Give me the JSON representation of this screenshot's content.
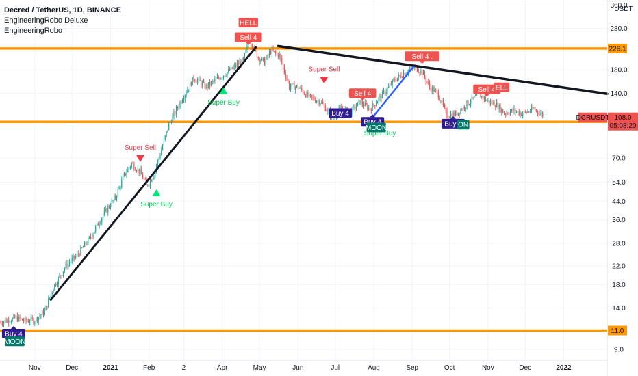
{
  "header": {
    "symbol_line": "Decred / TetherUS, 1D, BINANCE",
    "indicator_1": "EngineeringRobo Deluxe",
    "indicator_2": "EngineeringRobo"
  },
  "price_axis": {
    "currency": "USDT",
    "ticks": [
      {
        "value": 360,
        "label": "360.0"
      },
      {
        "value": 280,
        "label": "280.0"
      },
      {
        "value": 180,
        "label": "180.0"
      },
      {
        "value": 140,
        "label": "140.0"
      },
      {
        "value": 70,
        "label": "70.0"
      },
      {
        "value": 54,
        "label": "54.0"
      },
      {
        "value": 44,
        "label": "44.0"
      },
      {
        "value": 36,
        "label": "36.0"
      },
      {
        "value": 28,
        "label": "28.0"
      },
      {
        "value": 22,
        "label": "22.0"
      },
      {
        "value": 18,
        "label": "18.0"
      },
      {
        "value": 14,
        "label": "14.0"
      },
      {
        "value": 9,
        "label": "9.0"
      }
    ],
    "badges": [
      {
        "value": 226.1,
        "label": "226.1",
        "color": "#ff9800",
        "text_color": "#131722"
      },
      {
        "value": 103.0,
        "label": "103.0",
        "color": "#ff9800",
        "text_color": "#131722"
      },
      {
        "value": 11.0,
        "label": "11.0",
        "color": "#ff9800",
        "text_color": "#131722"
      }
    ],
    "current": {
      "value": 108.0,
      "price_label": "108.0",
      "countdown": "05:08:20",
      "ticker": "DCRUSDT",
      "color": "#ef5350"
    }
  },
  "time_axis": {
    "ticks": [
      {
        "day": 0,
        "label": "Nov",
        "bold": false
      },
      {
        "day": 30,
        "label": "Dec",
        "bold": false
      },
      {
        "day": 61,
        "label": "2021",
        "bold": true
      },
      {
        "day": 92,
        "label": "Feb",
        "bold": false
      },
      {
        "day": 120,
        "label": "2",
        "bold": false
      },
      {
        "day": 151,
        "label": "Apr",
        "bold": false
      },
      {
        "day": 181,
        "label": "May",
        "bold": false
      },
      {
        "day": 212,
        "label": "Jun",
        "bold": false
      },
      {
        "day": 242,
        "label": "Jul",
        "bold": false
      },
      {
        "day": 273,
        "label": "Aug",
        "bold": false
      },
      {
        "day": 304,
        "label": "Sep",
        "bold": false
      },
      {
        "day": 334,
        "label": "Oct",
        "bold": false
      },
      {
        "day": 365,
        "label": "Nov",
        "bold": false
      },
      {
        "day": 395,
        "label": "Dec",
        "bold": false
      },
      {
        "day": 426,
        "label": "2022",
        "bold": true
      }
    ]
  },
  "chart_data": {
    "type": "candlestick",
    "title": "Decred / TetherUS, 1D, BINANCE",
    "y_scale": "log",
    "ylim": [
      8,
      380
    ],
    "x_start_day": -28,
    "x_end_day": 461,
    "colors": {
      "up": "#26a69a",
      "down": "#ef5350",
      "level": "#ff9800",
      "trend": "#131722",
      "channel": "#2962ff"
    },
    "price_path": [
      [
        -28,
        12.0
      ],
      [
        -15,
        12.6
      ],
      [
        -8,
        12.2
      ],
      [
        0,
        12.3
      ],
      [
        8,
        13.5
      ],
      [
        15,
        17.5
      ],
      [
        25,
        22
      ],
      [
        35,
        25
      ],
      [
        45,
        30
      ],
      [
        55,
        38
      ],
      [
        65,
        46
      ],
      [
        72,
        58
      ],
      [
        78,
        66
      ],
      [
        85,
        60
      ],
      [
        90,
        52
      ],
      [
        95,
        57
      ],
      [
        100,
        70
      ],
      [
        108,
        100
      ],
      [
        118,
        130
      ],
      [
        128,
        165
      ],
      [
        138,
        150
      ],
      [
        148,
        165
      ],
      [
        158,
        180
      ],
      [
        168,
        200
      ],
      [
        173,
        250
      ],
      [
        180,
        205
      ],
      [
        185,
        195
      ],
      [
        190,
        220
      ],
      [
        197,
        210
      ],
      [
        205,
        150
      ],
      [
        212,
        150
      ],
      [
        220,
        135
      ],
      [
        230,
        128
      ],
      [
        240,
        108
      ],
      [
        246,
        118
      ],
      [
        255,
        115
      ],
      [
        262,
        128
      ],
      [
        270,
        118
      ],
      [
        280,
        138
      ],
      [
        290,
        162
      ],
      [
        300,
        178
      ],
      [
        306,
        185
      ],
      [
        312,
        175
      ],
      [
        318,
        150
      ],
      [
        325,
        138
      ],
      [
        332,
        110
      ],
      [
        340,
        113
      ],
      [
        348,
        125
      ],
      [
        358,
        138
      ],
      [
        365,
        128
      ],
      [
        372,
        124
      ],
      [
        378,
        113
      ],
      [
        386,
        116
      ],
      [
        393,
        112
      ],
      [
        402,
        118
      ],
      [
        410,
        110
      ]
    ],
    "levels": [
      {
        "value": 226.1,
        "label": "226.1"
      },
      {
        "value": 103.0,
        "label": "103.0"
      },
      {
        "value": 11.0,
        "label": "11.0"
      }
    ],
    "trendlines": [
      {
        "x1": 13,
        "y1": 15.3,
        "x2": 178,
        "y2": 229,
        "color": "#131722",
        "width": 3
      },
      {
        "x1": 196,
        "y1": 232,
        "x2": 461,
        "y2": 139,
        "color": "#131722",
        "width": 3.5
      },
      {
        "x1": 272,
        "y1": 108,
        "x2": 305,
        "y2": 186,
        "color": "#2962ff",
        "width": 2.5
      }
    ],
    "signals": [
      {
        "day": 85,
        "value": 67,
        "kind": "arrow-down",
        "text": "Super Sell",
        "text_pos": "above",
        "color": "#f23645"
      },
      {
        "day": 98,
        "value": 50,
        "kind": "arrow-up",
        "text": "Super Buy",
        "text_pos": "below",
        "color": "#00e676"
      },
      {
        "day": 152,
        "value": 149,
        "kind": "arrow-up",
        "text": "Super Buy",
        "text_pos": "below",
        "color": "#00e676"
      },
      {
        "day": 233,
        "value": 155,
        "kind": "arrow-down",
        "text": "Super Sell",
        "text_pos": "above",
        "color": "#f23645"
      },
      {
        "day": 278,
        "value": 89,
        "kind": "text-only",
        "text": "Super Buy",
        "text_pos": "none",
        "color": "#00e676"
      }
    ],
    "labels": [
      {
        "day": 172,
        "value": 298,
        "text": "HELL",
        "color": "#ef5350",
        "text_color": "#ffffff",
        "pointer": "none"
      },
      {
        "day": 172,
        "value": 255,
        "text": "Sell 4",
        "color": "#ef5350",
        "text_color": "#ffffff",
        "pointer": "down"
      },
      {
        "day": 264,
        "value": 140,
        "text": "Sell 4",
        "color": "#ef5350",
        "text_color": "#ffffff",
        "pointer": "down"
      },
      {
        "day": 312,
        "value": 208,
        "text": "Sell 4 .",
        "color": "#ef5350",
        "text_color": "#ffffff",
        "pointer": "down"
      },
      {
        "day": 364,
        "value": 146,
        "text": "Sell 4",
        "color": "#ef5350",
        "text_color": "#ffffff",
        "pointer": "down"
      },
      {
        "day": 376,
        "value": 149,
        "text": "ELL",
        "color": "#ef5350",
        "text_color": "#ffffff",
        "pointer": "none"
      },
      {
        "day": 246,
        "value": 113,
        "text": "Buy 4",
        "color": "#311b92",
        "text_color": "#ffffff",
        "pointer": "none"
      },
      {
        "day": 272,
        "value": 103,
        "text": "Buy 4",
        "color": "#311b92",
        "text_color": "#ffffff",
        "pointer": "up"
      },
      {
        "day": 275,
        "value": 97,
        "text": "MOON",
        "color": "#00796b",
        "text_color": "#ffffff",
        "pointer": "none"
      },
      {
        "day": 337,
        "value": 101,
        "text": "Buy 4",
        "color": "#311b92",
        "text_color": "#ffffff",
        "pointer": "up"
      },
      {
        "day": 345,
        "value": 100,
        "text": "ON",
        "color": "#00796b",
        "text_color": "#ffffff",
        "pointer": "none"
      },
      {
        "day": -17,
        "value": 10.65,
        "text": "Buy 4",
        "color": "#311b92",
        "text_color": "#ffffff",
        "pointer": "up"
      },
      {
        "day": -16,
        "value": 9.8,
        "text": "MOON",
        "color": "#00796b",
        "text_color": "#ffffff",
        "pointer": "none"
      }
    ]
  }
}
